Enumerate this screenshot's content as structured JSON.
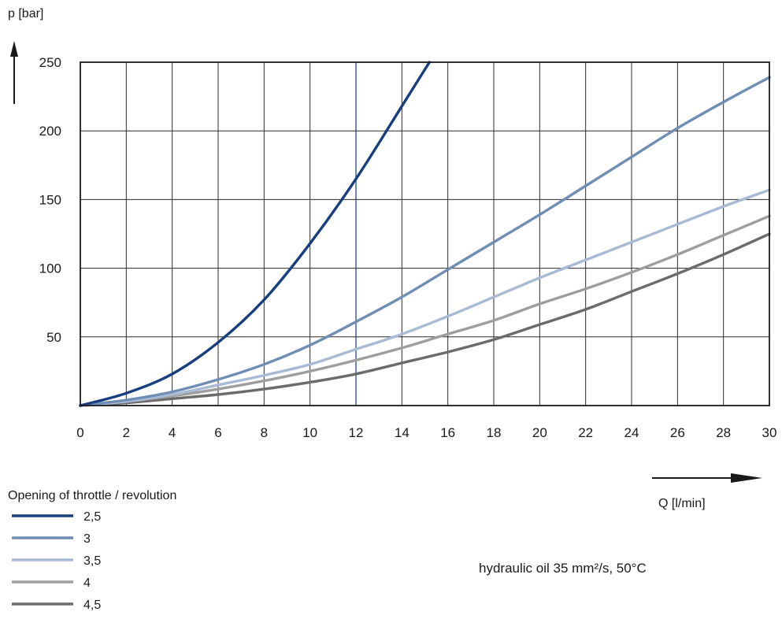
{
  "chart_data": {
    "type": "line",
    "ylabel": "p [bar]",
    "xlabel": "Q [l/min]",
    "xlim": [
      0,
      30
    ],
    "ylim": [
      0,
      250
    ],
    "x_ticks": [
      "0",
      "2",
      "4",
      "6",
      "8",
      "10",
      "12",
      "14",
      "16",
      "18",
      "20",
      "22",
      "24",
      "26",
      "28",
      "30"
    ],
    "y_ticks": [
      "50",
      "100",
      "150",
      "200",
      "250"
    ],
    "grid": true,
    "highlight_x": 12,
    "legend": {
      "title": "Opening of throttle / revolution",
      "placement": "bottom-left"
    },
    "series": [
      {
        "name": "2,5",
        "color": "#173f7f",
        "points": [
          [
            0,
            0
          ],
          [
            2,
            9
          ],
          [
            4,
            23
          ],
          [
            6,
            46
          ],
          [
            8,
            77
          ],
          [
            10,
            118
          ],
          [
            12,
            165
          ],
          [
            14,
            218
          ],
          [
            15.2,
            250
          ]
        ]
      },
      {
        "name": "3",
        "color": "#6f8db5",
        "points": [
          [
            0,
            0
          ],
          [
            2,
            4
          ],
          [
            4,
            10
          ],
          [
            6,
            19
          ],
          [
            8,
            30
          ],
          [
            10,
            44
          ],
          [
            12,
            61
          ],
          [
            14,
            79
          ],
          [
            16,
            99
          ],
          [
            18,
            119
          ],
          [
            20,
            139
          ],
          [
            22,
            160
          ],
          [
            24,
            181
          ],
          [
            26,
            202
          ],
          [
            28,
            221
          ],
          [
            30,
            239
          ]
        ]
      },
      {
        "name": "3,5",
        "color": "#a9bad4",
        "points": [
          [
            0,
            0
          ],
          [
            2,
            3
          ],
          [
            4,
            8
          ],
          [
            6,
            15
          ],
          [
            8,
            22
          ],
          [
            10,
            30
          ],
          [
            12,
            41
          ],
          [
            14,
            52
          ],
          [
            16,
            65
          ],
          [
            18,
            79
          ],
          [
            20,
            93
          ],
          [
            22,
            106
          ],
          [
            24,
            119
          ],
          [
            26,
            132
          ],
          [
            28,
            145
          ],
          [
            30,
            157
          ]
        ]
      },
      {
        "name": "4",
        "color": "#9e9e9e",
        "points": [
          [
            0,
            0
          ],
          [
            2,
            3
          ],
          [
            4,
            7
          ],
          [
            6,
            12
          ],
          [
            8,
            18
          ],
          [
            10,
            25
          ],
          [
            12,
            33
          ],
          [
            14,
            42
          ],
          [
            16,
            52
          ],
          [
            18,
            62
          ],
          [
            20,
            74
          ],
          [
            22,
            85
          ],
          [
            24,
            97
          ],
          [
            26,
            110
          ],
          [
            28,
            124
          ],
          [
            30,
            138
          ]
        ]
      },
      {
        "name": "4,5",
        "color": "#6b6b6b",
        "points": [
          [
            0,
            0
          ],
          [
            2,
            2
          ],
          [
            4,
            5
          ],
          [
            6,
            8
          ],
          [
            8,
            12
          ],
          [
            10,
            17
          ],
          [
            12,
            23
          ],
          [
            14,
            31
          ],
          [
            16,
            39
          ],
          [
            18,
            48
          ],
          [
            20,
            59
          ],
          [
            22,
            70
          ],
          [
            24,
            83
          ],
          [
            26,
            96
          ],
          [
            28,
            110
          ],
          [
            30,
            125
          ]
        ]
      }
    ],
    "annotation": "hydraulic oil 35 mm²/s, 50°C"
  }
}
